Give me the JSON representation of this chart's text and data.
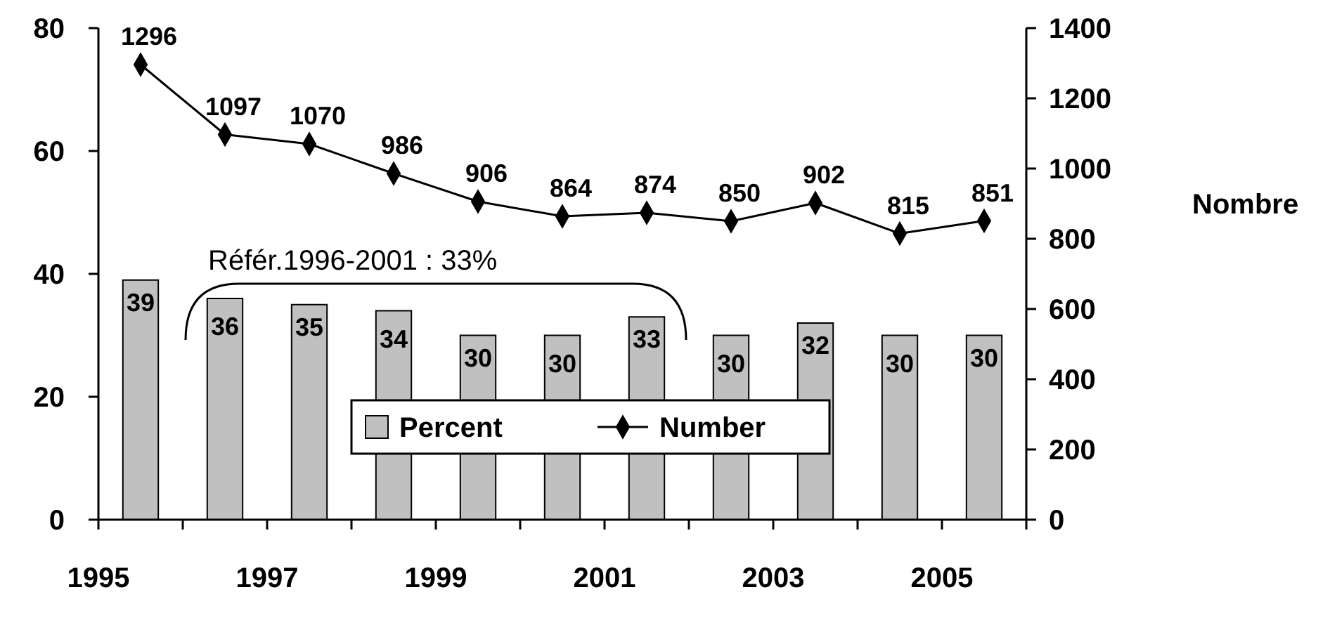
{
  "chart_data": {
    "type": "bar",
    "x": [
      1995.5,
      1996.5,
      1997.5,
      1998.5,
      1999.5,
      2000.5,
      2001.5,
      2002.5,
      2003.5,
      2004.5,
      2005.5
    ],
    "series": [
      {
        "name": "Percent",
        "color": "#c0c0c0",
        "values": [
          39,
          36,
          35,
          34,
          30,
          30,
          33,
          30,
          32,
          30,
          30
        ]
      },
      {
        "name": "Number",
        "type": "line",
        "axis": "y2",
        "color": "#000000",
        "values": [
          1296,
          1097,
          1070,
          986,
          906,
          864,
          874,
          850,
          902,
          815,
          851
        ]
      }
    ],
    "marker": "diamond",
    "xlim": [
      1995,
      2006
    ],
    "xticks": [
      1995,
      {
        "value": 1996,
        "label": null
      },
      1997,
      {
        "value": 1998,
        "label": null
      },
      1999,
      {
        "value": 2000,
        "label": null
      },
      2001,
      {
        "value": 2002,
        "label": null
      },
      2003,
      {
        "value": 2004,
        "label": null
      },
      2005,
      {
        "value": 2006,
        "label": null
      }
    ],
    "ylim": [
      0,
      80
    ],
    "yticks": [
      0,
      20,
      40,
      60,
      80
    ],
    "y2lim": [
      0,
      1400
    ],
    "y2ticks": [
      0,
      200,
      400,
      600,
      800,
      1000,
      1200,
      1400
    ],
    "y2label": "Nombre",
    "data_labels": true,
    "legend": "bottom",
    "grid": false,
    "annotations": [
      "Référ.1996-2001 : 33%"
    ]
  }
}
